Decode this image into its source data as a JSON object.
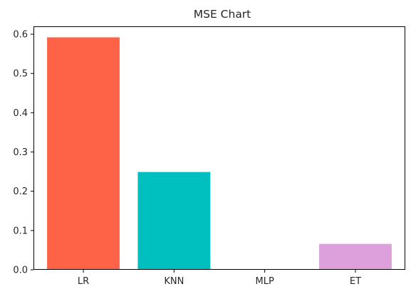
{
  "chart_data": {
    "type": "bar",
    "title": "MSE Chart",
    "xlabel": "",
    "ylabel": "",
    "categories": [
      "LR",
      "KNN",
      "MLP",
      "ET"
    ],
    "values": [
      0.592,
      0.249,
      0.0,
      0.066
    ],
    "colors": [
      "#ff6347",
      "#00bfbf",
      "#9acd32",
      "#dda0dd"
    ],
    "ylim": [
      0,
      0.62
    ],
    "yticks": [
      0.0,
      0.1,
      0.2,
      0.3,
      0.4,
      0.5,
      0.6
    ],
    "ytick_labels": [
      "0.0",
      "0.1",
      "0.2",
      "0.3",
      "0.4",
      "0.5",
      "0.6"
    ],
    "grid": false,
    "legend": "none"
  }
}
